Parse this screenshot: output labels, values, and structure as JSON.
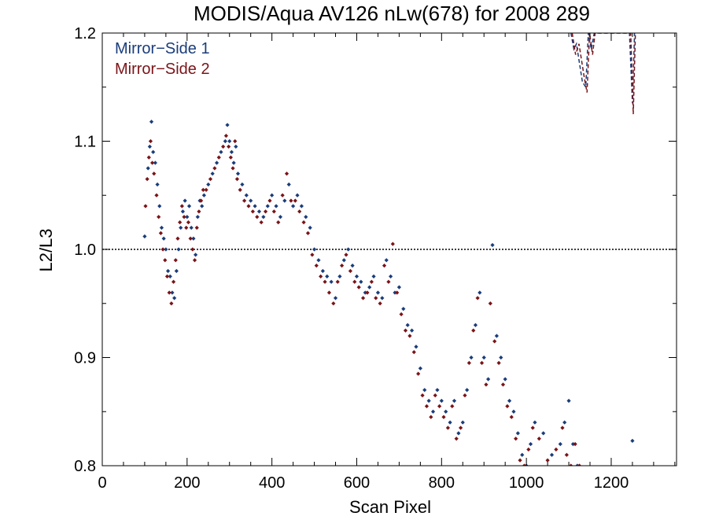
{
  "chart_data": {
    "type": "scatter",
    "title": "MODIS/Aqua AV126 nLw(678) for 2008 289",
    "xlabel": "Scan Pixel",
    "ylabel": "L2/L3",
    "xlim": [
      0,
      1354
    ],
    "ylim": [
      0.8,
      1.2
    ],
    "x_ticks": [
      {
        "value": 0,
        "label": "0"
      },
      {
        "value": 200,
        "label": "200"
      },
      {
        "value": 400,
        "label": "400"
      },
      {
        "value": 600,
        "label": "600"
      },
      {
        "value": 800,
        "label": "800"
      },
      {
        "value": 1000,
        "label": "1000"
      },
      {
        "value": 1200,
        "label": "1200"
      }
    ],
    "y_ticks": [
      {
        "value": 0.8,
        "label": "0.8"
      },
      {
        "value": 0.9,
        "label": "0.9"
      },
      {
        "value": 1.0,
        "label": "1.0"
      },
      {
        "value": 1.1,
        "label": "1.1"
      },
      {
        "value": 1.2,
        "label": "1.2"
      }
    ],
    "reference_line": 1.0,
    "legend_position": "top-left",
    "series": [
      {
        "name": "Mirror−Side 1",
        "color": "#1a3d7a",
        "x": [
          100,
          108,
          112,
          116,
          120,
          125,
          130,
          135,
          140,
          145,
          150,
          155,
          160,
          165,
          170,
          175,
          180,
          185,
          190,
          195,
          200,
          205,
          210,
          215,
          220,
          225,
          230,
          235,
          240,
          250,
          260,
          270,
          280,
          290,
          295,
          300,
          305,
          310,
          315,
          320,
          330,
          340,
          350,
          360,
          370,
          380,
          390,
          400,
          410,
          420,
          430,
          440,
          450,
          460,
          470,
          480,
          490,
          500,
          510,
          520,
          530,
          540,
          550,
          560,
          570,
          580,
          590,
          600,
          610,
          620,
          630,
          640,
          650,
          660,
          670,
          680,
          690,
          700,
          710,
          720,
          730,
          740,
          750,
          760,
          770,
          780,
          790,
          800,
          810,
          820,
          830,
          840,
          850,
          860,
          870,
          880,
          890,
          900,
          910,
          920,
          930,
          940,
          950,
          960,
          970,
          980,
          990,
          1000,
          1010,
          1020,
          1040,
          1060,
          1080,
          1090,
          1100,
          1110,
          1120,
          1250
        ],
        "y": [
          1.012,
          1.075,
          1.095,
          1.118,
          1.09,
          1.08,
          1.06,
          1.04,
          1.02,
          1.01,
          1.0,
          0.98,
          0.975,
          0.96,
          0.955,
          0.98,
          1.0,
          1.02,
          1.035,
          1.045,
          1.03,
          1.04,
          1.02,
          1.01,
          0.995,
          1.03,
          1.045,
          1.04,
          1.05,
          1.06,
          1.07,
          1.08,
          1.09,
          1.1,
          1.115,
          1.1,
          1.09,
          1.08,
          1.095,
          1.07,
          1.06,
          1.05,
          1.045,
          1.04,
          1.035,
          1.03,
          1.04,
          1.05,
          1.04,
          1.03,
          1.045,
          1.06,
          1.04,
          1.05,
          1.04,
          1.03,
          1.02,
          1.0,
          0.99,
          0.98,
          0.975,
          0.97,
          0.955,
          0.975,
          0.99,
          1.0,
          0.985,
          0.975,
          0.97,
          0.96,
          0.965,
          0.975,
          0.96,
          0.955,
          0.99,
          0.975,
          0.96,
          0.965,
          0.945,
          0.93,
          0.925,
          0.91,
          0.89,
          0.87,
          0.86,
          0.85,
          0.87,
          0.86,
          0.85,
          0.84,
          0.86,
          0.83,
          0.84,
          0.87,
          0.9,
          0.93,
          0.96,
          0.9,
          0.88,
          1.004,
          0.92,
          0.9,
          0.88,
          0.86,
          0.85,
          0.83,
          0.81,
          0.8,
          0.82,
          0.84,
          0.83,
          0.81,
          0.82,
          0.84,
          0.86,
          0.82,
          0.8,
          0.823
        ]
      },
      {
        "name": "Mirror−Side 2",
        "color": "#7a1418",
        "x": [
          102,
          106,
          110,
          114,
          118,
          122,
          128,
          133,
          138,
          143,
          148,
          153,
          158,
          163,
          168,
          173,
          178,
          183,
          188,
          193,
          198,
          203,
          208,
          213,
          218,
          223,
          228,
          233,
          238,
          245,
          255,
          265,
          275,
          285,
          292,
          298,
          303,
          308,
          313,
          318,
          325,
          335,
          345,
          355,
          365,
          375,
          385,
          395,
          405,
          415,
          425,
          435,
          445,
          455,
          465,
          475,
          485,
          495,
          505,
          515,
          525,
          535,
          545,
          555,
          565,
          575,
          585,
          595,
          605,
          615,
          625,
          635,
          645,
          655,
          665,
          675,
          685,
          695,
          705,
          715,
          725,
          735,
          745,
          755,
          765,
          775,
          785,
          795,
          805,
          815,
          825,
          835,
          845,
          855,
          865,
          875,
          885,
          895,
          905,
          915,
          925,
          935,
          945,
          955,
          965,
          975,
          985,
          995,
          1005,
          1015,
          1030,
          1050,
          1070,
          1085,
          1095,
          1105,
          1115,
          1125
        ],
        "y": [
          1.04,
          1.065,
          1.085,
          1.1,
          1.08,
          1.07,
          1.05,
          1.03,
          1.015,
          1.0,
          0.99,
          0.975,
          0.96,
          0.95,
          0.97,
          0.99,
          1.01,
          1.025,
          1.04,
          1.03,
          1.02,
          1.025,
          1.01,
          1.0,
          0.99,
          1.02,
          1.035,
          1.045,
          1.055,
          1.055,
          1.065,
          1.075,
          1.085,
          1.095,
          1.105,
          1.095,
          1.085,
          1.075,
          1.1,
          1.065,
          1.055,
          1.045,
          1.04,
          1.035,
          1.03,
          1.025,
          1.035,
          1.045,
          1.035,
          1.025,
          1.05,
          1.07,
          1.045,
          1.045,
          1.035,
          1.025,
          1.015,
          0.995,
          0.985,
          0.975,
          0.97,
          0.96,
          0.95,
          0.97,
          0.985,
          0.995,
          0.98,
          0.97,
          0.965,
          0.955,
          0.96,
          0.97,
          0.955,
          0.95,
          0.985,
          0.97,
          1.005,
          0.96,
          0.94,
          0.925,
          0.92,
          0.905,
          0.885,
          0.865,
          0.855,
          0.845,
          0.865,
          0.855,
          0.845,
          0.835,
          0.855,
          0.825,
          0.835,
          0.865,
          0.895,
          0.925,
          0.955,
          0.895,
          0.875,
          0.95,
          0.915,
          0.895,
          0.875,
          0.855,
          0.845,
          0.825,
          0.805,
          0.8,
          0.815,
          0.835,
          0.825,
          0.805,
          0.815,
          0.835,
          0.81,
          0.8,
          0.82,
          0.8
        ]
      }
    ],
    "dashed_lines": [
      {
        "color": "#1a3d7a",
        "points": [
          [
            1105,
            1.2
          ],
          [
            1112,
            1.185
          ],
          [
            1118,
            1.19
          ],
          [
            1132,
            1.155
          ],
          [
            1140,
            1.15
          ],
          [
            1146,
            1.2
          ],
          [
            1153,
            1.185
          ],
          [
            1160,
            1.2
          ],
          [
            1243,
            1.2
          ],
          [
            1250,
            1.135
          ],
          [
            1255,
            1.2
          ]
        ]
      },
      {
        "color": "#7a1418",
        "points": [
          [
            1108,
            1.2
          ],
          [
            1116,
            1.18
          ],
          [
            1124,
            1.19
          ],
          [
            1136,
            1.16
          ],
          [
            1143,
            1.145
          ],
          [
            1149,
            1.2
          ],
          [
            1156,
            1.18
          ],
          [
            1162,
            1.2
          ],
          [
            1246,
            1.2
          ],
          [
            1252,
            1.125
          ],
          [
            1257,
            1.2
          ]
        ]
      }
    ]
  }
}
